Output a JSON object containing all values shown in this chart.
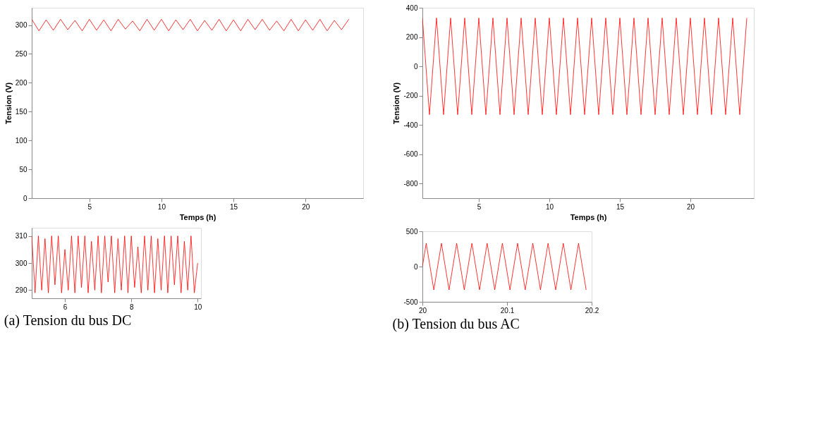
{
  "chart_data": [
    {
      "type": "line",
      "title": "(a) Tension du bus DC",
      "xlabel": "Temps (h)",
      "ylabel": "Tension (V)",
      "xlim": [
        1,
        24
      ],
      "xticks": [
        5,
        10,
        15,
        20
      ],
      "ylim": [
        0,
        330
      ],
      "yticks": [
        0,
        50,
        100,
        150,
        200,
        250,
        300
      ],
      "grid": false,
      "x": [
        1,
        1.5,
        2,
        2.5,
        3,
        3.5,
        4,
        4.5,
        5,
        5.5,
        6,
        6.5,
        7,
        7.5,
        8,
        8.5,
        9,
        9.5,
        10,
        10.5,
        11,
        11.5,
        12,
        12.5,
        13,
        13.5,
        14,
        14.5,
        15,
        15.5,
        16,
        16.5,
        17,
        17.5,
        18,
        18.5,
        19,
        19.5,
        20,
        20.5,
        21,
        21.5,
        22,
        22.5,
        23
      ],
      "series": [
        {
          "color": "#ff0000",
          "values": [
            310,
            290,
            309,
            291,
            310,
            292,
            308,
            290,
            310,
            291,
            309,
            290,
            310,
            293,
            307,
            290,
            310,
            291,
            310,
            290,
            309,
            292,
            310,
            290,
            308,
            291,
            310,
            290,
            309,
            290,
            310,
            292,
            310,
            291,
            307,
            290,
            310,
            290,
            309,
            291,
            310,
            290,
            308,
            292,
            310
          ]
        }
      ]
    },
    {
      "type": "line",
      "xlim": [
        5,
        10.1
      ],
      "xticks": [
        6,
        8,
        10
      ],
      "ylim": [
        287,
        313
      ],
      "yticks": [
        290,
        300,
        310
      ],
      "grid": false,
      "x": [
        5,
        5.1,
        5.2,
        5.3,
        5.4,
        5.5,
        5.6,
        5.7,
        5.8,
        5.9,
        6,
        6.1,
        6.2,
        6.3,
        6.4,
        6.5,
        6.6,
        6.7,
        6.8,
        6.9,
        7,
        7.1,
        7.2,
        7.3,
        7.4,
        7.5,
        7.6,
        7.7,
        7.8,
        7.9,
        8,
        8.1,
        8.2,
        8.3,
        8.4,
        8.5,
        8.6,
        8.7,
        8.8,
        8.9,
        9,
        9.1,
        9.2,
        9.3,
        9.4,
        9.5,
        9.6,
        9.7,
        9.8,
        9.9,
        10
      ],
      "series": [
        {
          "color": "#ff0000",
          "values": [
            310,
            289,
            310,
            290,
            309,
            289,
            310,
            292,
            310,
            289,
            305,
            290,
            310,
            289,
            310,
            291,
            310,
            289,
            308,
            290,
            310,
            289,
            310,
            293,
            310,
            289,
            309,
            290,
            310,
            289,
            310,
            291,
            306,
            289,
            310,
            290,
            310,
            289,
            309,
            290,
            310,
            289,
            310,
            292,
            310,
            289,
            308,
            290,
            310,
            289,
            300
          ]
        }
      ]
    },
    {
      "type": "line",
      "title": "(b) Tension du bus AC",
      "xlabel": "Temps (h)",
      "ylabel": "Tension (V)",
      "xlim": [
        1,
        24.5
      ],
      "xticks": [
        5,
        10,
        15,
        20
      ],
      "ylim": [
        -900,
        400
      ],
      "yticks": [
        -800,
        -600,
        -400,
        -200,
        0,
        200,
        400
      ],
      "grid": false,
      "x": [
        1,
        1.5,
        2,
        2.5,
        3,
        3.5,
        4,
        4.5,
        5,
        5.5,
        6,
        6.5,
        7,
        7.5,
        8,
        8.5,
        9,
        9.5,
        10,
        10.5,
        11,
        11.5,
        12,
        12.5,
        13,
        13.5,
        14,
        14.5,
        15,
        15.5,
        16,
        16.5,
        17,
        17.5,
        18,
        18.5,
        19,
        19.5,
        20,
        20.5,
        21,
        21.5,
        22,
        22.5,
        23,
        23.5,
        24
      ],
      "series": [
        {
          "color": "#ff0000",
          "values": [
            330,
            -330,
            330,
            -330,
            330,
            -330,
            330,
            -330,
            330,
            -330,
            330,
            -330,
            330,
            -330,
            330,
            -330,
            330,
            -330,
            330,
            -330,
            330,
            -330,
            330,
            -330,
            330,
            -330,
            330,
            -330,
            330,
            -330,
            330,
            -330,
            330,
            -330,
            330,
            -330,
            330,
            -330,
            330,
            -330,
            330,
            -330,
            330,
            -330,
            330,
            -330,
            330
          ]
        }
      ]
    },
    {
      "type": "line",
      "xlim": [
        20,
        20.2
      ],
      "xticks": [
        20,
        20.1,
        20.2
      ],
      "ylim": [
        -500,
        500
      ],
      "yticks": [
        -500,
        0,
        500
      ],
      "grid": false,
      "x": [
        20.0,
        20.0045,
        20.009,
        20.0135,
        20.018,
        20.0225,
        20.027,
        20.0315,
        20.036,
        20.0405,
        20.045,
        20.0495,
        20.054,
        20.0585,
        20.063,
        20.0675,
        20.072,
        20.0765,
        20.081,
        20.0855,
        20.09,
        20.0945,
        20.099,
        20.1035,
        20.108,
        20.1125,
        20.117,
        20.1215,
        20.126,
        20.1305,
        20.135,
        20.1395,
        20.144,
        20.1485,
        20.153,
        20.1575,
        20.162,
        20.1665,
        20.171,
        20.1755,
        20.18,
        20.1845,
        20.189,
        20.1935
      ],
      "series": [
        {
          "color": "#ff0000",
          "values": [
            0,
            330,
            0,
            -330,
            0,
            330,
            0,
            -330,
            0,
            330,
            0,
            -330,
            0,
            330,
            0,
            -330,
            0,
            330,
            0,
            -330,
            0,
            330,
            0,
            -330,
            0,
            330,
            0,
            -330,
            0,
            330,
            0,
            -330,
            0,
            330,
            0,
            -330,
            0,
            330,
            0,
            -330,
            0,
            330,
            0,
            -330
          ]
        }
      ]
    }
  ]
}
